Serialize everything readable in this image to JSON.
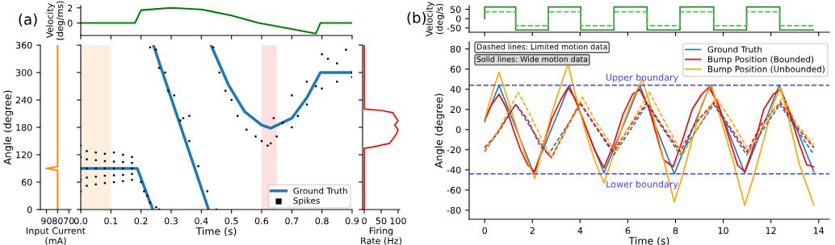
{
  "chart_data": [
    {
      "type": "line",
      "ylabel": "Velocity\n(deg/ms)",
      "annotations": [
        "(a)"
      ],
      "xlim": [
        0,
        0.9
      ],
      "ylim": [
        -1.65,
        2.3
      ],
      "xticks": [
        0.0,
        0.1,
        0.2,
        0.3,
        0.4,
        0.5,
        0.6,
        0.7,
        0.8,
        0.9
      ],
      "yticks": [
        0,
        2
      ],
      "tick_labels": "y",
      "series": [
        {
          "color": "#008000",
          "x": [
            0,
            0.18,
            0.2,
            0.3,
            0.4,
            0.5,
            0.59,
            0.7,
            0.78,
            0.795,
            0.9
          ],
          "values": [
            0,
            0,
            1.7,
            2.0,
            1.8,
            1.0,
            0,
            -0.8,
            -1.4,
            0,
            0
          ]
        }
      ]
    },
    {
      "type": "line",
      "xlabel": "Input Current\n(mA)",
      "ylabel": "Angle (degree)",
      "xlim": [
        95.4,
        68
      ],
      "ylim": [
        0,
        360
      ],
      "xticks": [
        90,
        80,
        70
      ],
      "yticks": [
        0,
        60,
        120,
        180,
        240,
        300,
        360
      ],
      "series": [
        {
          "color": "#ff8c00",
          "x": [
            80,
            80,
            90,
            80,
            80
          ],
          "values": [
            0,
            86,
            90,
            94,
            360
          ]
        }
      ]
    },
    {
      "type": "line",
      "xlabel": "Time (s)",
      "xlim": [
        0,
        0.9
      ],
      "ylim": [
        0,
        360
      ],
      "xticks": [
        {
          "value": 0,
          "label": "0.0"
        },
        0.1,
        0.2,
        0.3,
        0.4,
        0.5,
        0.6,
        0.7,
        0.8,
        0.9
      ],
      "yticks": [
        0,
        60,
        120,
        180,
        240,
        300,
        360
      ],
      "tick_labels": "x",
      "legend": "lower right",
      "bands": [
        {
          "axis": "x",
          "from": 0,
          "to": 0.1,
          "color": "#fdefdf"
        },
        {
          "axis": "x",
          "from": 0.6,
          "to": 0.65,
          "color": "#fde0e0"
        }
      ],
      "series": [
        {
          "name": "Ground Truth",
          "color": "#1f77b4",
          "x": [
            0,
            0.1875,
            0.239,
            0.24,
            0.241,
            0.424,
            0.43,
            0.432,
            0.49,
            0.544,
            0.6,
            0.63,
            0.7,
            0.75,
            0.795,
            0.9
          ],
          "values": [
            90,
            90,
            0,
            null,
            360,
            0,
            null,
            360,
            273,
            214,
            185,
            178,
            200,
            245,
            300,
            300
          ]
        },
        {
          "name": "Spikes",
          "type": "scatter",
          "marker": "square",
          "color": "#000000",
          "x": [
            0,
            0,
            0,
            0,
            0,
            0.02,
            0.02,
            0.02,
            0.02,
            0.02,
            0.05,
            0.05,
            0.05,
            0.05,
            0.05,
            0.08,
            0.08,
            0.08,
            0.08,
            0.08,
            0.11,
            0.11,
            0.11,
            0.11,
            0.11,
            0.14,
            0.14,
            0.14,
            0.14,
            0.14,
            0.17,
            0.17,
            0.17,
            0.17,
            0.17,
            0.2,
            0.21,
            0.22,
            0.23,
            0.25,
            0.26,
            0.23,
            0.26,
            0.29,
            0.33,
            0.36,
            0.25,
            0.28,
            0.31,
            0.34,
            0.36,
            0.39,
            0.42,
            0.45,
            0.44,
            0.46,
            0.48,
            0.5,
            0.52,
            0.55,
            0.58,
            0.6,
            0.62,
            0.63,
            0.65,
            0.64,
            0.67,
            0.7,
            0.72,
            0.75,
            0.78,
            0.8,
            0.82,
            0.85,
            0.88,
            0.9,
            0.85,
            0.8,
            0.9,
            0.75,
            0.7
          ],
          "values": [
            40,
            65,
            90,
            115,
            140,
            52,
            70,
            90,
            110,
            128,
            55,
            72,
            90,
            108,
            125,
            58,
            74,
            90,
            106,
            122,
            60,
            75,
            90,
            105,
            125,
            62,
            76,
            90,
            104,
            120,
            65,
            78,
            90,
            102,
            115,
            60,
            40,
            30,
            15,
            5,
            0,
            355,
            310,
            260,
            195,
            150,
            350,
            300,
            250,
            200,
            205,
            95,
            40,
            0,
            355,
            300,
            260,
            240,
            205,
            175,
            160,
            150,
            140,
            145,
            160,
            200,
            190,
            180,
            205,
            230,
            270,
            340,
            330,
            320,
            350,
            290,
            280,
            265,
            300,
            280,
            250
          ]
        }
      ]
    },
    {
      "type": "line",
      "xlabel": "Firing\nRate (Hz)",
      "xlim": [
        -5,
        105
      ],
      "ylim": [
        0,
        360
      ],
      "xticks": [
        0,
        50,
        100
      ],
      "yticks": [
        0,
        60,
        120,
        180,
        240,
        300,
        360
      ],
      "tick_labels": "x",
      "series": [
        {
          "color": "#ff0000",
          "x": [
            0,
            0,
            25,
            75,
            85,
            95,
            100,
            90,
            100,
            90,
            85,
            50,
            0,
            0
          ],
          "values": [
            0,
            134,
            137,
            145,
            155,
            165,
            175,
            185,
            195,
            205,
            212,
            217,
            220,
            360
          ]
        }
      ]
    },
    {
      "type": "step",
      "ylabel": "Velocity\n(deg/s)",
      "annotations": [
        "(b)"
      ],
      "xlim": [
        -0.65,
        14.45
      ],
      "ylim": [
        -73,
        70
      ],
      "xticks": [
        0,
        2,
        4,
        6,
        8,
        10,
        12,
        14
      ],
      "yticks": [
        -50,
        0,
        50
      ],
      "tick_labels": "y",
      "series": [
        {
          "color": "#1a8f1a",
          "x": [
            0,
            0,
            1.3,
            2.67,
            4.03,
            5.42,
            6.81,
            8.19,
            9.6,
            10.98,
            12.37,
            13.78
          ],
          "values": [
            0,
            63,
            -61,
            63,
            -61,
            63,
            -61,
            63,
            -61,
            63,
            -61,
            -61
          ]
        },
        {
          "color": "#5cb85c",
          "line_style": "dashed",
          "x": [
            0,
            1.3,
            2.67,
            4.03,
            5.42,
            6.81,
            8.19,
            9.6,
            10.98,
            12.37,
            13.78
          ],
          "values": [
            37,
            -38,
            37,
            -38,
            37,
            -38,
            37,
            -38,
            37,
            -38,
            -38
          ]
        }
      ]
    },
    {
      "type": "line",
      "xlabel": "Time (s)",
      "ylabel": "Angle (degree)",
      "annotations": [
        "Dashed lines: Limited motion data",
        "Solid lines: Wide motion data"
      ],
      "xlim": [
        -0.65,
        14.45
      ],
      "ylim": [
        -89,
        87
      ],
      "xticks": [
        0,
        2,
        4,
        6,
        8,
        10,
        12,
        14
      ],
      "yticks": [
        -80,
        -60,
        -40,
        -20,
        0,
        20,
        40,
        60,
        80
      ],
      "legend": "upper right",
      "ref_lines": [
        {
          "axis": "y",
          "value": 44,
          "label": "Upper boundary",
          "color": "#4040ff",
          "line_style": "dashed"
        },
        {
          "axis": "y",
          "value": -44,
          "label": "Lower boundary",
          "color": "#4040ff",
          "line_style": "dashed"
        }
      ],
      "series": [
        {
          "name": "Ground Truth",
          "color": "#1f77b4",
          "x": [
            0,
            0.6,
            2.05,
            3.55,
            5.0,
            6.5,
            7.95,
            9.45,
            10.9,
            12.35,
            13.8
          ],
          "values": [
            8,
            44,
            -43,
            44,
            -43,
            44,
            -44,
            44,
            -43,
            44,
            -42
          ]
        },
        {
          "name": "Bump Position (Bounded)",
          "color": "#ff0000",
          "x": [
            0,
            0.3,
            0.6,
            0.9,
            1.2,
            1.5,
            1.8,
            2.1,
            2.4,
            2.8,
            3.2,
            3.5,
            3.8,
            4.2,
            4.6,
            5.0,
            5.4,
            5.8,
            6.2,
            6.5,
            6.9,
            7.2,
            7.5,
            7.9,
            8.3,
            8.7,
            9.1,
            9.4,
            9.8,
            10.2,
            10.6,
            10.9,
            11.3,
            11.7,
            12.1,
            12.4,
            12.8,
            13.2,
            13.5,
            13.8
          ],
          "values": [
            10,
            25,
            35,
            22,
            0,
            -20,
            -35,
            -42,
            -20,
            10,
            30,
            42,
            30,
            5,
            -20,
            -38,
            -15,
            15,
            35,
            40,
            20,
            -5,
            -30,
            -37,
            -10,
            20,
            35,
            42,
            25,
            -5,
            -35,
            -42,
            -15,
            20,
            35,
            40,
            15,
            -15,
            -35,
            -37
          ]
        },
        {
          "name": "Bump Position (Unbounded)",
          "color": "#ffa500",
          "x": [
            0,
            0.3,
            0.6,
            0.9,
            1.3,
            1.7,
            2.1,
            2.4,
            2.8,
            3.2,
            3.5,
            3.8,
            4.2,
            4.6,
            5.0,
            5.4,
            5.8,
            6.2,
            6.6,
            7.0,
            7.4,
            7.95,
            8.3,
            8.7,
            9.1,
            9.5,
            9.9,
            10.4,
            10.9,
            11.3,
            11.7,
            12.1,
            12.4,
            12.8,
            13.2,
            13.8
          ],
          "values": [
            10,
            35,
            57,
            35,
            5,
            -25,
            -49,
            -20,
            15,
            45,
            65,
            35,
            0,
            -30,
            -53,
            -25,
            5,
            30,
            50,
            20,
            -20,
            -72,
            -45,
            -10,
            25,
            45,
            10,
            -30,
            -75,
            -45,
            -10,
            25,
            42,
            5,
            -35,
            -75
          ]
        },
        {
          "color": "#1f77b4",
          "line_style": "dashed",
          "x": [
            0,
            1.3,
            2.67,
            4.03,
            5.42,
            6.81,
            8.19,
            9.6,
            10.98,
            12.37,
            13.78
          ],
          "values": [
            -22,
            25,
            -25,
            25,
            -25,
            25,
            -25,
            25,
            -25,
            25,
            -24
          ]
        },
        {
          "color": "#ff0000",
          "line_style": "dashed",
          "x": [
            0,
            0.5,
            1.3,
            1.8,
            2.3,
            2.8,
            3.3,
            4.0,
            4.6,
            5.4,
            6.0,
            6.8,
            7.4,
            8.2,
            8.8,
            9.6,
            10.2,
            11.0,
            11.6,
            12.4,
            13.0,
            13.8
          ],
          "values": [
            -18,
            -5,
            25,
            10,
            -15,
            -28,
            -5,
            27,
            5,
            -22,
            0,
            27,
            5,
            -22,
            5,
            27,
            5,
            -22,
            5,
            27,
            5,
            -18
          ]
        },
        {
          "color": "#ffa500",
          "line_style": "dashed",
          "x": [
            0,
            0.6,
            1.4,
            1.9,
            2.4,
            2.8,
            3.3,
            4.1,
            4.6,
            5.5,
            6.1,
            6.9,
            7.5,
            8.3,
            8.9,
            9.7,
            10.3,
            11.1,
            11.7,
            12.5,
            13.1,
            13.8
          ],
          "values": [
            -21,
            0,
            37,
            15,
            -10,
            -27,
            -5,
            32,
            10,
            -22,
            5,
            37,
            10,
            -25,
            0,
            32,
            10,
            -22,
            5,
            32,
            5,
            -15
          ]
        }
      ]
    }
  ]
}
